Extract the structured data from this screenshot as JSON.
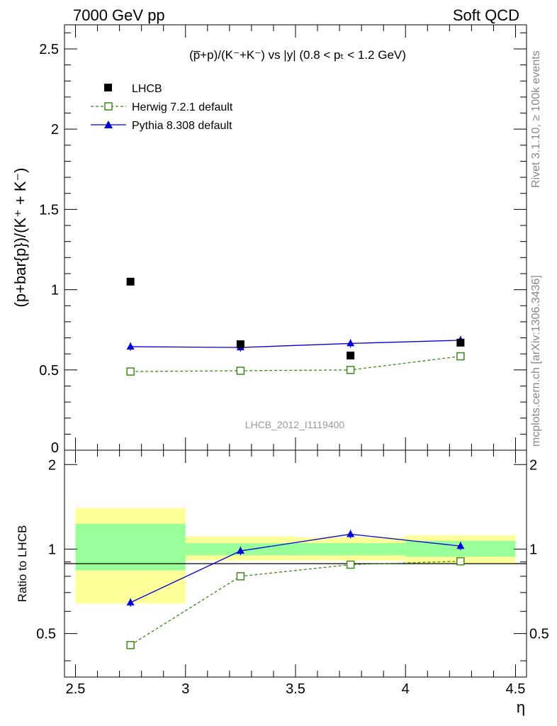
{
  "header": {
    "left": "7000 GeV pp",
    "right": "Soft QCD"
  },
  "side_labels": {
    "rivet": "Rivet 3.1.10, ≥ 100k events",
    "mcplots": "mcplots.cern.ch [arXiv:1306.3436]"
  },
  "plot_title": "(p̅+p)/(K⁻+K⁻) vs |y| (0.8 < pₜ < 1.2 GeV)",
  "analysis_id": "LHCB_2012_I1119400",
  "colors": {
    "data": "#000000",
    "herwig": "#3a8a1a",
    "pythia": "#0000e0",
    "band_inner": "#99ff99",
    "band_outer": "#ffff99"
  },
  "chart_data": [
    {
      "type": "scatter",
      "ylabel": "(p+bar{p})/(K⁺ + K⁻)",
      "ylim": [
        0,
        2.65
      ],
      "yticks": [
        "0.5",
        "1",
        "1.5",
        "2",
        "2.5"
      ],
      "series": [
        {
          "name": "LHCB",
          "x": [
            2.75,
            3.25,
            3.75,
            4.25
          ],
          "y": [
            1.05,
            0.66,
            0.59,
            0.67
          ]
        },
        {
          "name": "Herwig 7.2.1 default",
          "x": [
            2.75,
            3.25,
            3.75,
            4.25
          ],
          "y": [
            0.49,
            0.495,
            0.5,
            0.585
          ]
        },
        {
          "name": "Pythia 8.308 default",
          "x": [
            2.75,
            3.25,
            3.75,
            4.25
          ],
          "y": [
            0.645,
            0.64,
            0.665,
            0.685
          ]
        }
      ],
      "legend_position": "top-left"
    },
    {
      "type": "line",
      "ylabel": "Ratio to LHCB",
      "xlabel": "η",
      "xlim": [
        2.45,
        4.55
      ],
      "ylim": [
        0.35,
        2.25
      ],
      "xticks": [
        "2.5",
        "3",
        "3.5",
        "4",
        "4.5"
      ],
      "yticks": [
        "0.5",
        "1",
        "2"
      ],
      "bins": [
        [
          2.5,
          3.0
        ],
        [
          3.0,
          3.5
        ],
        [
          3.5,
          4.0
        ],
        [
          4.0,
          4.5
        ]
      ],
      "inner_band": [
        [
          0.84,
          1.23
        ],
        [
          0.95,
          1.05
        ],
        [
          0.95,
          1.05
        ],
        [
          0.94,
          1.07
        ]
      ],
      "outer_band": [
        [
          0.64,
          1.4
        ],
        [
          0.91,
          1.11
        ],
        [
          0.91,
          1.1
        ],
        [
          0.89,
          1.12
        ]
      ],
      "series": [
        {
          "name": "Herwig 7.2.1 default",
          "x": [
            2.75,
            3.25,
            3.75,
            4.25
          ],
          "y": [
            0.455,
            0.8,
            0.88,
            0.905
          ]
        },
        {
          "name": "Pythia 8.308 default",
          "x": [
            2.75,
            3.25,
            3.75,
            4.25
          ],
          "y": [
            0.645,
            0.985,
            1.13,
            1.025
          ]
        }
      ]
    }
  ]
}
